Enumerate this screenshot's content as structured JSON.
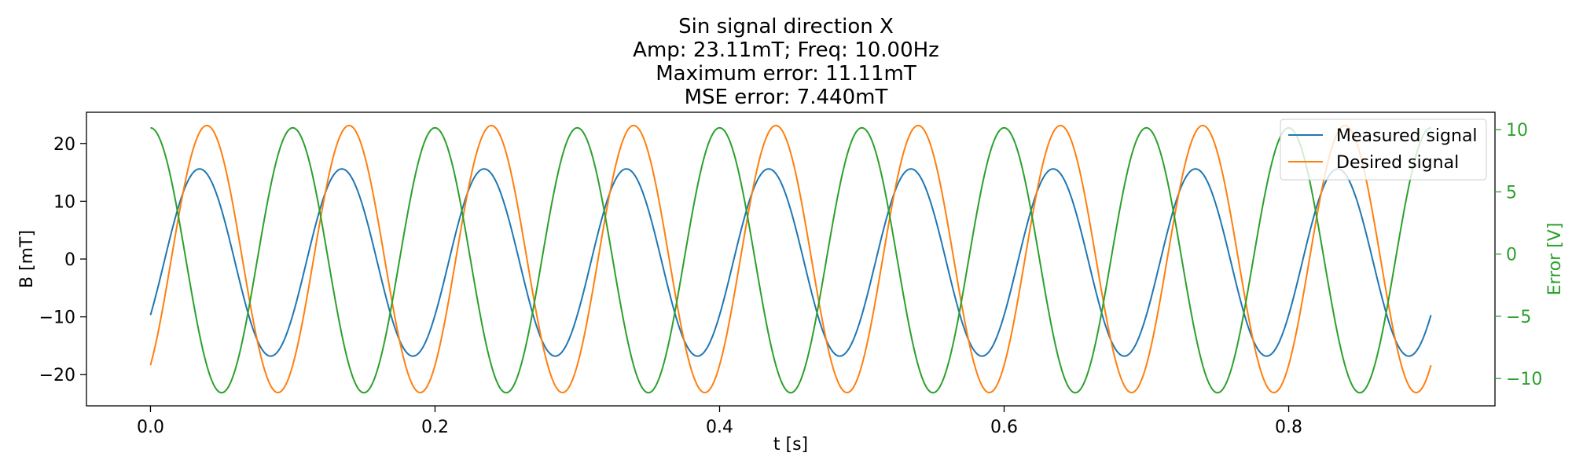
{
  "chart_data": {
    "type": "line",
    "title_lines": [
      "Sin signal direction X",
      "Amp: 23.11mT; Freq: 10.00Hz",
      "Maximum error: 11.11mT",
      "MSE error: 7.440mT"
    ],
    "xlabel": "t [s]",
    "ylabel": "B [mT]",
    "y2label": "Error [V]",
    "xlim": [
      -0.045,
      0.945
    ],
    "ylim": [
      -25.4,
      25.4
    ],
    "y2lim": [
      -12.2,
      11.4
    ],
    "xticks": [
      0.0,
      0.2,
      0.4,
      0.6,
      0.8
    ],
    "xtick_labels": [
      "0.0",
      "0.2",
      "0.4",
      "0.6",
      "0.8"
    ],
    "yticks": [
      20,
      10,
      0,
      -10,
      -20
    ],
    "ytick_labels": [
      "20",
      "10",
      "0",
      "−10",
      "−20"
    ],
    "y2ticks": [
      10,
      5,
      0,
      -5,
      -10
    ],
    "y2tick_labels": [
      "10",
      "5",
      "0",
      "−5",
      "−10"
    ],
    "grid": false,
    "legend_position": "top-right",
    "sample_rate_hz": 1000,
    "t_start": 0.0,
    "t_end": 0.9,
    "series": [
      {
        "name": "Measured signal",
        "axis": "left",
        "color": "#1f77b4",
        "model": "sine",
        "amplitude": 16.2,
        "offset": -0.6,
        "frequency_hz": 10.0,
        "phase_rad": -0.596
      },
      {
        "name": "Desired signal",
        "axis": "left",
        "color": "#ff7f0e",
        "model": "sine",
        "amplitude": 23.11,
        "offset": 0.0,
        "frequency_hz": 10.0,
        "phase_rad": -0.918
      },
      {
        "name": "",
        "axis": "right",
        "color": "#2ca02c",
        "model": "cosine",
        "amplitude": 10.65,
        "offset": -0.5,
        "frequency_hz": 10.0,
        "phase_rad": 0.0
      }
    ],
    "right_axis_color": "#2ca02c"
  }
}
